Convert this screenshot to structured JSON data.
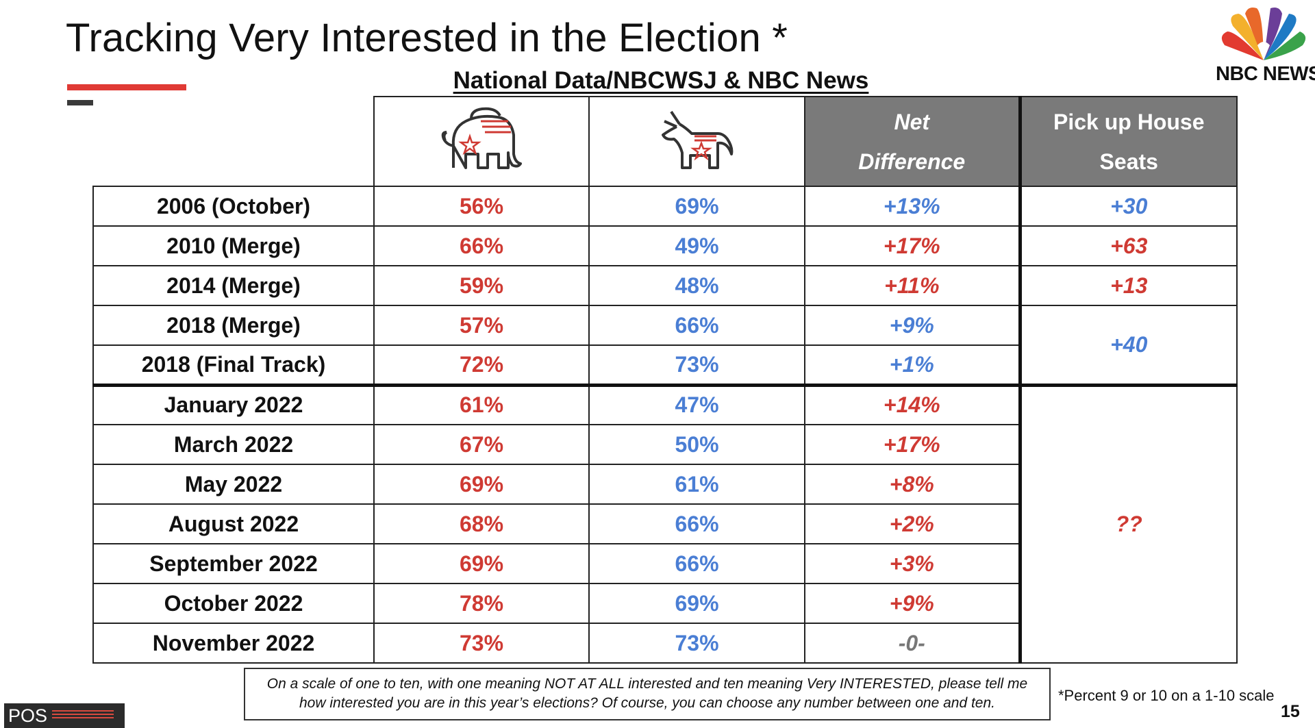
{
  "title": "Tracking Very Interested in the Election *",
  "subtitle": "National Data/NBCWSJ & NBC News",
  "logo_text": "NBC NEWS",
  "columns": {
    "net_line1": "Net",
    "net_line2": "Difference",
    "seats_line1": "Pick up House",
    "seats_line2": "Seats",
    "rep_icon": "elephant-icon",
    "dem_icon": "donkey-icon"
  },
  "rows": [
    {
      "label": "2006 (October)",
      "rep": "56%",
      "dem": "69%",
      "net": "+13%"
    },
    {
      "label": "2010 (Merge)",
      "rep": "66%",
      "dem": "49%",
      "net": "+17%"
    },
    {
      "label": "2014 (Merge)",
      "rep": "59%",
      "dem": "48%",
      "net": "+11%"
    },
    {
      "label": "2018 (Merge)",
      "rep": "57%",
      "dem": "66%",
      "net": "+9%"
    },
    {
      "label": "2018 (Final Track)",
      "rep": "72%",
      "dem": "73%",
      "net": "+1%"
    },
    {
      "label": "January 2022",
      "rep": "61%",
      "dem": "47%",
      "net": "+14%"
    },
    {
      "label": "March 2022",
      "rep": "67%",
      "dem": "50%",
      "net": "+17%"
    },
    {
      "label": "May 2022",
      "rep": "69%",
      "dem": "61%",
      "net": "+8%"
    },
    {
      "label": "August 2022",
      "rep": "68%",
      "dem": "66%",
      "net": "+2%"
    },
    {
      "label": "September 2022",
      "rep": "69%",
      "dem": "66%",
      "net": "+3%"
    },
    {
      "label": "October 2022",
      "rep": "78%",
      "dem": "69%",
      "net": "+9%"
    },
    {
      "label": "November 2022",
      "rep": "73%",
      "dem": "73%",
      "net": "-0-"
    }
  ],
  "seats": [
    "+30",
    "+63",
    "+13",
    "+40",
    "??"
  ],
  "question_line1": "On a scale of one to ten, with one meaning NOT AT ALL interested and ten meaning Very INTERESTED, please tell me",
  "question_line2": "how interested you are in this year’s elections? Of course, you can choose any number between one and ten.",
  "footnote": "*Percent 9 or 10 on a 1-10 scale",
  "page_number": "15",
  "pos_logo": "POS",
  "colors": {
    "republican": "#cf3a33",
    "democrat": "#4a7ed4",
    "header_gray": "#7a7a7a",
    "accent": "#e03a35"
  }
}
